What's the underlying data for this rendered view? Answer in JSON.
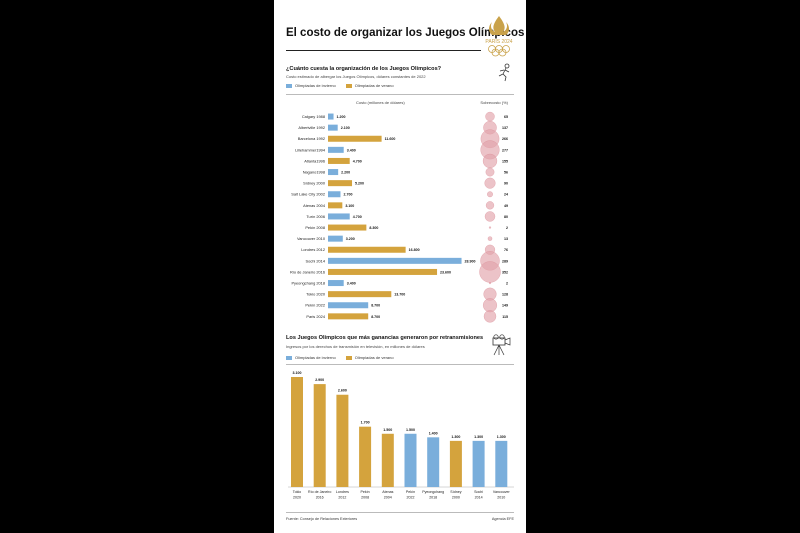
{
  "title": "El costo de organizar los Juegos Olímpicos",
  "logo": {
    "text": "PARIS 2024",
    "color": "#c9a24a"
  },
  "colors": {
    "winter": "#7aaedb",
    "summer": "#d4a33d",
    "bubble": "#e2a3ab"
  },
  "section1": {
    "title": "¿Cuánto cuesta la organización de los Juegos Olímpicos?",
    "subtitle": "Costo estimado de albergar los Juegos Olímpicos, dólares constantes de 2022",
    "legend_winter": "Olimpiadas de invierno",
    "legend_summer": "Olimpiadas de verano",
    "cost_header": "Costo (millones de dólares)",
    "overrun_header": "Sobrecosto (%)"
  },
  "chart_data": [
    {
      "type": "bar",
      "orientation": "horizontal",
      "categories": [
        "Calgary 1988",
        "Albertville 1992",
        "Barcelona 1992",
        "Lillehammer1994",
        "Atlanta1996",
        "Nagano1998",
        "Sídney 2000",
        "Salt Lake City 2002",
        "Atenas 2004",
        "Turín 2006",
        "Pekín 2008",
        "Vancouver 2010",
        "Londres 2012",
        "Sochi 2014",
        "Río de Janeiro 2016",
        "Pyeongchang 2018",
        "Tokio 2020",
        "Pekín 2022",
        "Paris 2024"
      ],
      "season": [
        "winter",
        "winter",
        "summer",
        "winter",
        "summer",
        "winter",
        "summer",
        "winter",
        "summer",
        "winter",
        "summer",
        "winter",
        "summer",
        "winter",
        "summer",
        "winter",
        "summer",
        "winter",
        "summer"
      ],
      "values": [
        1200,
        2100,
        11600,
        3400,
        4700,
        2200,
        5200,
        2700,
        3100,
        4700,
        8300,
        3200,
        16800,
        28900,
        23600,
        3400,
        13700,
        8700,
        8700
      ],
      "value_labels": [
        "1.200",
        "2.100",
        "11.600",
        "3.400",
        "4.700",
        "2.200",
        "5.200",
        "2.700",
        "3.100",
        "4.700",
        "8.300",
        "3.200",
        "16.800",
        "28.900",
        "23.600",
        "3.400",
        "13.700",
        "8.700",
        "8.700"
      ],
      "overrun_pct": [
        65,
        137,
        266,
        277,
        155,
        56,
        90,
        24,
        49,
        80,
        2,
        13,
        76,
        289,
        352,
        2,
        128,
        149,
        115
      ],
      "xlim": [
        0,
        29000
      ]
    },
    {
      "type": "bar",
      "title": "Los Juegos Olímpicos que más ganancias generaron por retransmisiones",
      "subtitle": "Ingresos por los derechos de transmisión en televisión, en millones de dólares",
      "legend_winter": "Olimpiadas de invierno",
      "legend_summer": "Olimpiadas de verano",
      "categories": [
        "Tokio 2020",
        "Río de Janeiro 2016",
        "Londres 2012",
        "Pekín 2008",
        "Atenas 2004",
        "Pekín 2022",
        "Pyeongchang 2018",
        "Sídney 2000",
        "Sochi 2014",
        "Vancouver 2010"
      ],
      "season": [
        "summer",
        "summer",
        "summer",
        "summer",
        "summer",
        "winter",
        "winter",
        "summer",
        "winter",
        "winter"
      ],
      "values": [
        3100,
        2900,
        2600,
        1700,
        1500,
        1500,
        1400,
        1300,
        1300,
        1300
      ],
      "value_labels": [
        "3.100",
        "2.900",
        "2.600",
        "1.700",
        "1.500",
        "1.500",
        "1.400",
        "1.300",
        "1.300",
        "1.300"
      ],
      "ylim": [
        0,
        3100
      ]
    }
  ],
  "footer": {
    "source": "Fuente: Consejo de Relaciones Exteriores",
    "agency": "Agencia EFE"
  }
}
